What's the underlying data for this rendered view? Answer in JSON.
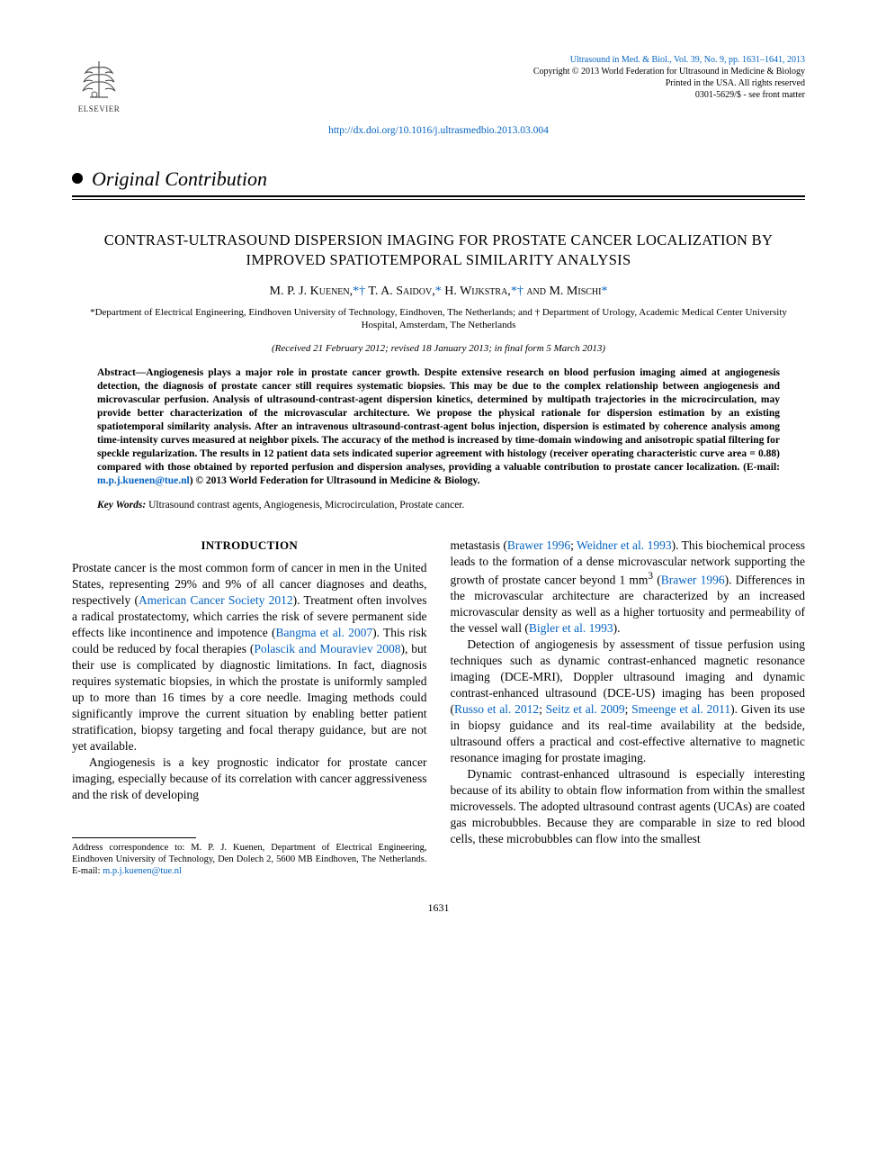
{
  "publisher": {
    "name": "ELSEVIER"
  },
  "journal": {
    "citation_line": "Ultrasound in Med. & Biol., Vol. 39, No. 9, pp. 1631–1641, 2013",
    "copyright": "Copyright © 2013 World Federation for Ultrasound in Medicine & Biology",
    "printed": "Printed in the USA. All rights reserved",
    "issn": "0301-5629/$ - see front matter"
  },
  "doi": {
    "url": "http://dx.doi.org/10.1016/j.ultrasmedbio.2013.03.004"
  },
  "section_label": "Original Contribution",
  "title": "CONTRAST-ULTRASOUND DISPERSION IMAGING FOR PROSTATE CANCER LOCALIZATION BY IMPROVED SPATIOTEMPORAL SIMILARITY ANALYSIS",
  "authors_html": "M. P. J. Kuenen,<span class='sym'>*†</span> T. A. Saidov,<span class='sym'>*</span> H. Wijkstra,<span class='sym'>*†</span> and M. Mischi<span class='sym'>*</span>",
  "affiliations": "*Department of Electrical Engineering, Eindhoven University of Technology, Eindhoven, The Netherlands; and † Department of Urology, Academic Medical Center University Hospital, Amsterdam, The Netherlands",
  "dates": "(Received 21 February 2012; revised 18 January 2013; in final form 5 March 2013)",
  "abstract": {
    "label": "Abstract—",
    "body": "Angiogenesis plays a major role in prostate cancer growth. Despite extensive research on blood perfusion imaging aimed at angiogenesis detection, the diagnosis of prostate cancer still requires systematic biopsies. This may be due to the complex relationship between angiogenesis and microvascular perfusion. Analysis of ultrasound-contrast-agent dispersion kinetics, determined by multipath trajectories in the microcirculation, may provide better characterization of the microvascular architecture. We propose the physical rationale for dispersion estimation by an existing spatiotemporal similarity analysis. After an intravenous ultrasound-contrast-agent bolus injection, dispersion is estimated by coherence analysis among time-intensity curves measured at neighbor pixels. The accuracy of the method is increased by time-domain windowing and anisotropic spatial filtering for speckle regularization. The results in 12 patient data sets indicated superior agreement with histology (receiver operating characteristic curve area = 0.88) compared with those obtained by reported perfusion and dispersion analyses, providing a valuable contribution to prostate cancer localization. (E-mail: ",
    "email": "m.p.j.kuenen@tue.nl",
    "tail": ")   © 2013 World Federation for Ultrasound in Medicine & Biology."
  },
  "keywords": {
    "label": "Key Words:",
    "text": " Ultrasound contrast agents, Angiogenesis, Microcirculation, Prostate cancer."
  },
  "intro_heading": "INTRODUCTION",
  "left_col": {
    "p1a": "Prostate cancer is the most common form of cancer in men in the United States, representing 29% and 9% of all cancer diagnoses and deaths, respectively (",
    "c1": "American Cancer Society 2012",
    "p1b": "). Treatment often involves a radical prostatectomy, which carries the risk of severe permanent side effects like incontinence and impotence (",
    "c2": "Bangma et al. 2007",
    "p1c": "). This risk could be reduced by focal therapies (",
    "c3": "Polascik and Mouraviev 2008",
    "p1d": "), but their use is complicated by diagnostic limitations. In fact, diagnosis requires systematic biopsies, in which the prostate is uniformly sampled up to more than 16 times by a core needle. Imaging methods could significantly improve the current situation by enabling better patient stratification, biopsy targeting and focal therapy guidance, but are not yet available.",
    "p2": "Angiogenesis is a key prognostic indicator for prostate cancer imaging, especially because of its correlation with cancer aggressiveness and the risk of developing"
  },
  "right_col": {
    "p1a": "metastasis (",
    "c1": "Brawer 1996",
    "p1b": "; ",
    "c2": "Weidner et al. 1993",
    "p1c": "). This biochemical process leads to the formation of a dense microvascular network supporting the growth of prostate cancer beyond 1 mm",
    "sup": "3",
    "p1d": " (",
    "c3": "Brawer 1996",
    "p1e": "). Differences in the microvascular architecture are characterized by an increased microvascular density as well as a higher tortuosity and permeability of the vessel wall (",
    "c4": "Bigler et al. 1993",
    "p1f": ").",
    "p2a": "Detection of angiogenesis by assessment of tissue perfusion using techniques such as dynamic contrast-enhanced magnetic resonance imaging (DCE-MRI), Doppler ultrasound imaging and dynamic contrast-enhanced ultrasound (DCE-US) imaging has been proposed (",
    "c5": "Russo et al. 2012",
    "p2b": "; ",
    "c6": "Seitz et al. 2009",
    "p2c": "; ",
    "c7": "Smeenge et al. 2011",
    "p2d": "). Given its use in biopsy guidance and its real-time availability at the bedside, ultrasound offers a practical and cost-effective alternative to magnetic resonance imaging for prostate imaging.",
    "p3": "Dynamic contrast-enhanced ultrasound is especially interesting because of its ability to obtain flow information from within the smallest microvessels. The adopted ultrasound contrast agents (UCAs) are coated gas microbubbles. Because they are comparable in size to red blood cells, these microbubbles can flow into the smallest"
  },
  "footnote": {
    "text": "Address correspondence to: M. P. J. Kuenen, Department of Electrical Engineering, Eindhoven University of Technology, Den Dolech 2, 5600 MB Eindhoven, The Netherlands. E-mail: ",
    "email": "m.p.j.kuenen@tue.nl"
  },
  "page_number": "1631",
  "colors": {
    "link": "#0563c1",
    "text": "#000000",
    "background": "#ffffff"
  }
}
